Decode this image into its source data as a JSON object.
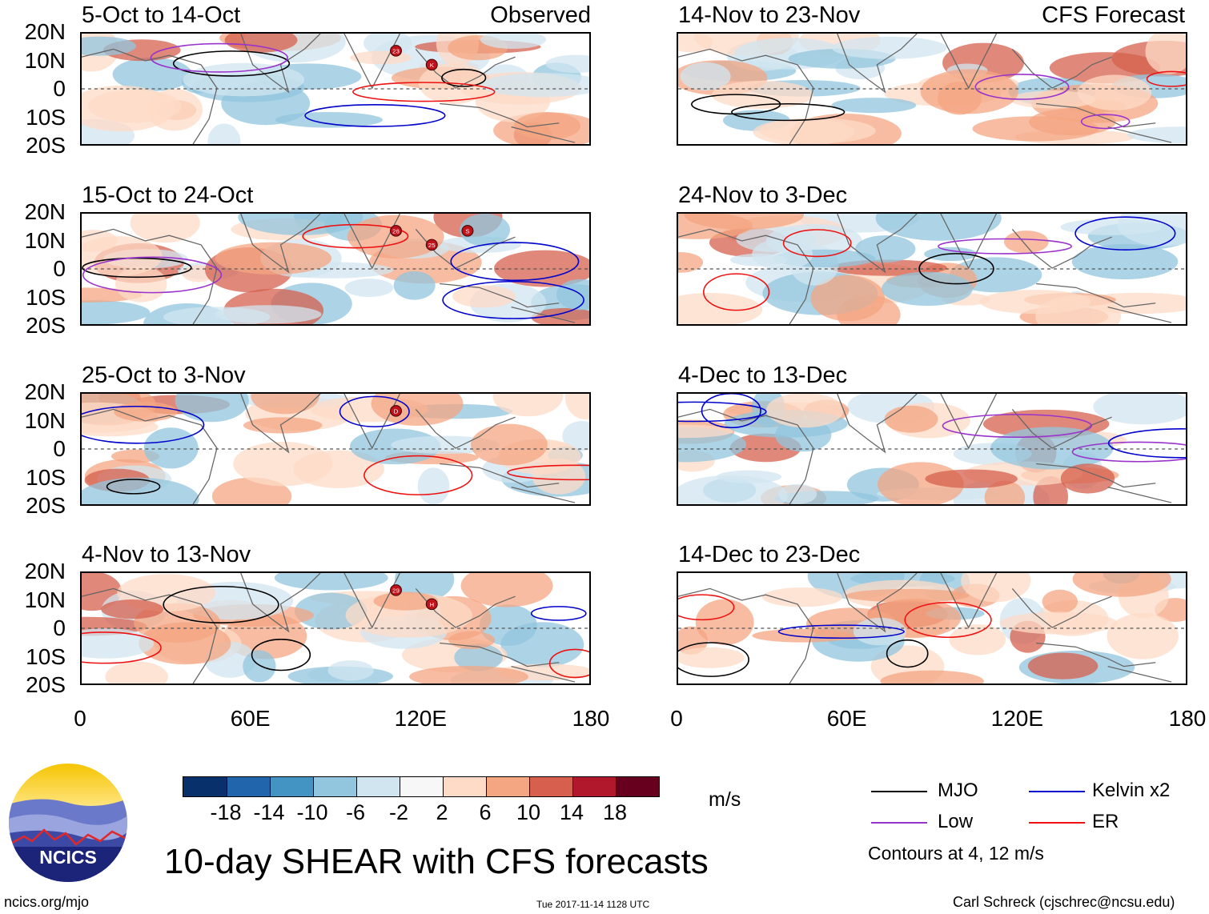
{
  "header": {
    "observed_label": "Observed",
    "forecast_label": "CFS Forecast"
  },
  "panels": [
    {
      "title": "5-Oct to 14-Oct"
    },
    {
      "title": "15-Oct to 24-Oct"
    },
    {
      "title": "25-Oct to 3-Nov"
    },
    {
      "title": "4-Nov to 13-Nov"
    },
    {
      "title": "14-Nov to 23-Nov"
    },
    {
      "title": "24-Nov to 3-Dec"
    },
    {
      "title": "4-Dec to 13-Dec"
    },
    {
      "title": "14-Dec to 23-Dec"
    }
  ],
  "y_axis_labels": [
    "20N",
    "10N",
    "0",
    "10S",
    "20S"
  ],
  "x_axis_labels": [
    "0",
    "60E",
    "120E",
    "180"
  ],
  "colorbar": {
    "colors": [
      "#08306b",
      "#2166ac",
      "#4393c3",
      "#92c5de",
      "#d1e5f0",
      "#f7f7f7",
      "#fddbc7",
      "#f4a582",
      "#d6604d",
      "#b2182b",
      "#67001f"
    ],
    "tick_labels": [
      "-18",
      "-14",
      "-10",
      "-6",
      "-2",
      "2",
      "6",
      "10",
      "14",
      "18"
    ],
    "unit": "m/s"
  },
  "main_title": "10-day SHEAR with CFS forecasts",
  "legend": {
    "items": [
      {
        "label": "MJO",
        "color": "#000000"
      },
      {
        "label": "Kelvin x2",
        "color": "#0000cc"
      },
      {
        "label": "Low",
        "color": "#9933cc"
      },
      {
        "label": "ER",
        "color": "#ee1111"
      }
    ],
    "note": "Contours at 4, 12 m/s"
  },
  "logo": {
    "text": "NCICS"
  },
  "footer": {
    "left": "ncics.org/mjo",
    "center": "Tue 2017-11-14 1128 UTC",
    "right": "Carl Schreck (cjschrec@ncsu.edu)"
  },
  "storm_markers": [
    {
      "panel": 0,
      "label": "23"
    },
    {
      "panel": 0,
      "label": "K"
    },
    {
      "panel": 1,
      "label": "26"
    },
    {
      "panel": 1,
      "label": "25"
    },
    {
      "panel": 1,
      "label": "S"
    },
    {
      "panel": 2,
      "label": "D"
    },
    {
      "panel": 3,
      "label": "29"
    },
    {
      "panel": 3,
      "label": "H"
    }
  ]
}
